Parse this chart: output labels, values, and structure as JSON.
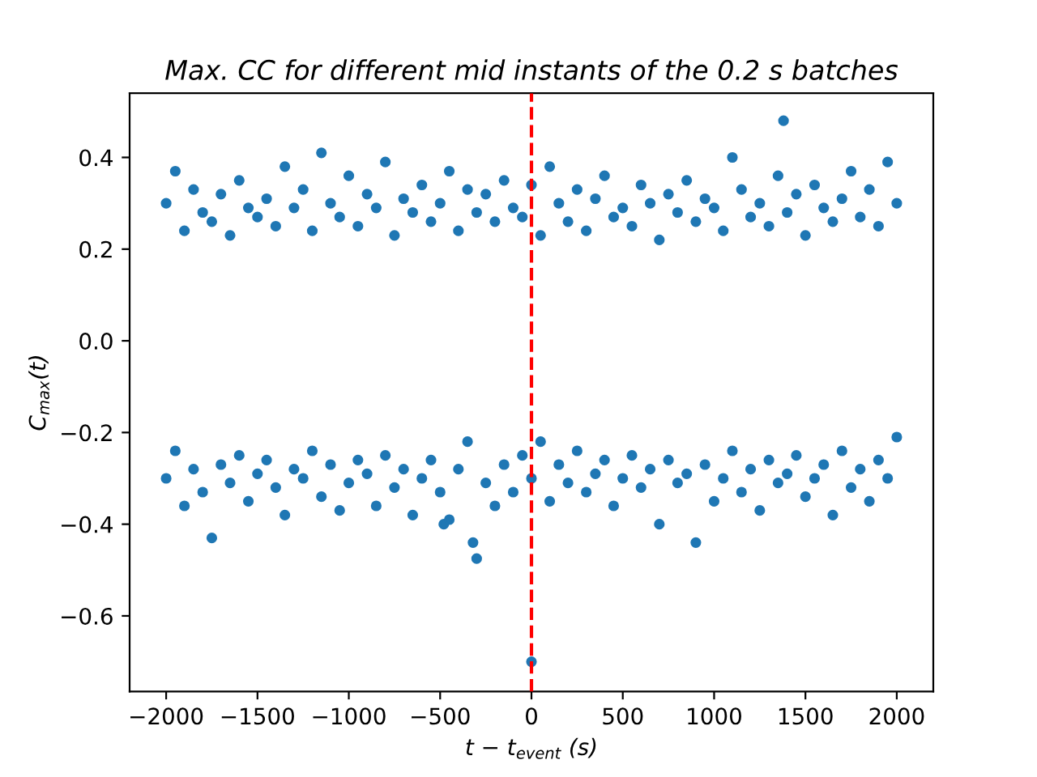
{
  "chart_data": {
    "type": "scatter",
    "title": "Max. CC for different mid instants of the 0.2 s batches",
    "xlabel": "t − t$_{event}$ (s)",
    "ylabel": "C$_{max}$(t)",
    "xlim": [
      -2200,
      2200
    ],
    "ylim": [
      -0.765,
      0.54
    ],
    "xticks": [
      {
        "value": -2000,
        "label": "−2000"
      },
      {
        "value": -1500,
        "label": "−1500"
      },
      {
        "value": -1000,
        "label": "−1000"
      },
      {
        "value": -500,
        "label": "−500"
      },
      0,
      500,
      1000,
      1500,
      2000
    ],
    "yticks": [
      {
        "value": -0.6,
        "label": "−0.6"
      },
      {
        "value": -0.4,
        "label": "−0.4"
      },
      {
        "value": -0.2,
        "label": "−0.2"
      },
      {
        "value": 0,
        "label": "0.0"
      },
      0.2,
      0.4
    ],
    "marker": "circle",
    "grid": false,
    "ref_lines": [
      {
        "axis": "x",
        "value": 0,
        "color": "#ff0000",
        "line_style": "dashed"
      }
    ],
    "series": [
      {
        "color": "#1f77b4",
        "x": [
          -2000,
          -1950,
          -1900,
          -1850,
          -1800,
          -1750,
          -1700,
          -1650,
          -1600,
          -1550,
          -1500,
          -1450,
          -1400,
          -1350,
          -1300,
          -1250,
          -1200,
          -1150,
          -1100,
          -1050,
          -1000,
          -950,
          -900,
          -850,
          -800,
          -750,
          -700,
          -650,
          -600,
          -550,
          -500,
          -450,
          -400,
          -350,
          -300,
          -250,
          -200,
          -150,
          -100,
          -50,
          0,
          50,
          100,
          150,
          200,
          250,
          300,
          350,
          400,
          450,
          500,
          550,
          600,
          650,
          700,
          750,
          800,
          850,
          900,
          950,
          1000,
          1050,
          1100,
          1150,
          1200,
          1250,
          1300,
          1350,
          1380,
          1400,
          1450,
          1500,
          1550,
          1600,
          1650,
          1700,
          1750,
          1800,
          1850,
          1900,
          1950,
          2000
        ],
        "values": [
          0.3,
          0.37,
          0.24,
          0.33,
          0.28,
          0.26,
          0.32,
          0.23,
          0.35,
          0.29,
          0.27,
          0.31,
          0.25,
          0.38,
          0.29,
          0.33,
          0.24,
          0.41,
          0.3,
          0.27,
          0.36,
          0.25,
          0.32,
          0.29,
          0.39,
          0.23,
          0.31,
          0.28,
          0.34,
          0.26,
          0.3,
          0.37,
          0.24,
          0.33,
          0.28,
          0.32,
          0.26,
          0.35,
          0.29,
          0.27,
          0.34,
          0.23,
          0.38,
          0.3,
          0.26,
          0.33,
          0.24,
          0.31,
          0.36,
          0.27,
          0.29,
          0.25,
          0.34,
          0.3,
          0.22,
          0.32,
          0.28,
          0.35,
          0.26,
          0.31,
          0.29,
          0.24,
          0.4,
          0.33,
          0.27,
          0.3,
          0.25,
          0.36,
          0.48,
          0.28,
          0.32,
          0.23,
          0.34,
          0.29,
          0.26,
          0.31,
          0.37,
          0.27,
          0.33,
          0.25,
          0.39,
          0.3
        ]
      },
      {
        "color": "#1f77b4",
        "x": [
          -2000,
          -1950,
          -1900,
          -1850,
          -1800,
          -1750,
          -1700,
          -1650,
          -1600,
          -1550,
          -1500,
          -1450,
          -1400,
          -1350,
          -1300,
          -1250,
          -1200,
          -1150,
          -1100,
          -1050,
          -1000,
          -950,
          -900,
          -850,
          -800,
          -750,
          -700,
          -650,
          -600,
          -550,
          -500,
          -480,
          -450,
          -400,
          -350,
          -320,
          -300,
          -250,
          -200,
          -150,
          -100,
          -50,
          0,
          0,
          50,
          100,
          150,
          200,
          250,
          300,
          350,
          400,
          450,
          500,
          550,
          600,
          650,
          700,
          750,
          800,
          850,
          900,
          950,
          1000,
          1050,
          1100,
          1150,
          1200,
          1250,
          1300,
          1350,
          1400,
          1450,
          1500,
          1550,
          1600,
          1650,
          1700,
          1750,
          1800,
          1850,
          1900,
          1950,
          2000
        ],
        "values": [
          -0.3,
          -0.24,
          -0.36,
          -0.28,
          -0.33,
          -0.43,
          -0.27,
          -0.31,
          -0.25,
          -0.35,
          -0.29,
          -0.26,
          -0.32,
          -0.38,
          -0.28,
          -0.3,
          -0.24,
          -0.34,
          -0.27,
          -0.37,
          -0.31,
          -0.26,
          -0.29,
          -0.36,
          -0.25,
          -0.32,
          -0.28,
          -0.38,
          -0.3,
          -0.26,
          -0.33,
          -0.4,
          -0.39,
          -0.28,
          -0.22,
          -0.44,
          -0.475,
          -0.31,
          -0.36,
          -0.27,
          -0.33,
          -0.25,
          -0.3,
          -0.7,
          -0.22,
          -0.35,
          -0.27,
          -0.31,
          -0.24,
          -0.33,
          -0.29,
          -0.26,
          -0.36,
          -0.3,
          -0.25,
          -0.32,
          -0.28,
          -0.4,
          -0.26,
          -0.31,
          -0.29,
          -0.44,
          -0.27,
          -0.35,
          -0.3,
          -0.24,
          -0.33,
          -0.28,
          -0.37,
          -0.26,
          -0.31,
          -0.29,
          -0.25,
          -0.34,
          -0.3,
          -0.27,
          -0.38,
          -0.24,
          -0.32,
          -0.28,
          -0.35,
          -0.26,
          -0.3,
          -0.21
        ]
      }
    ]
  }
}
